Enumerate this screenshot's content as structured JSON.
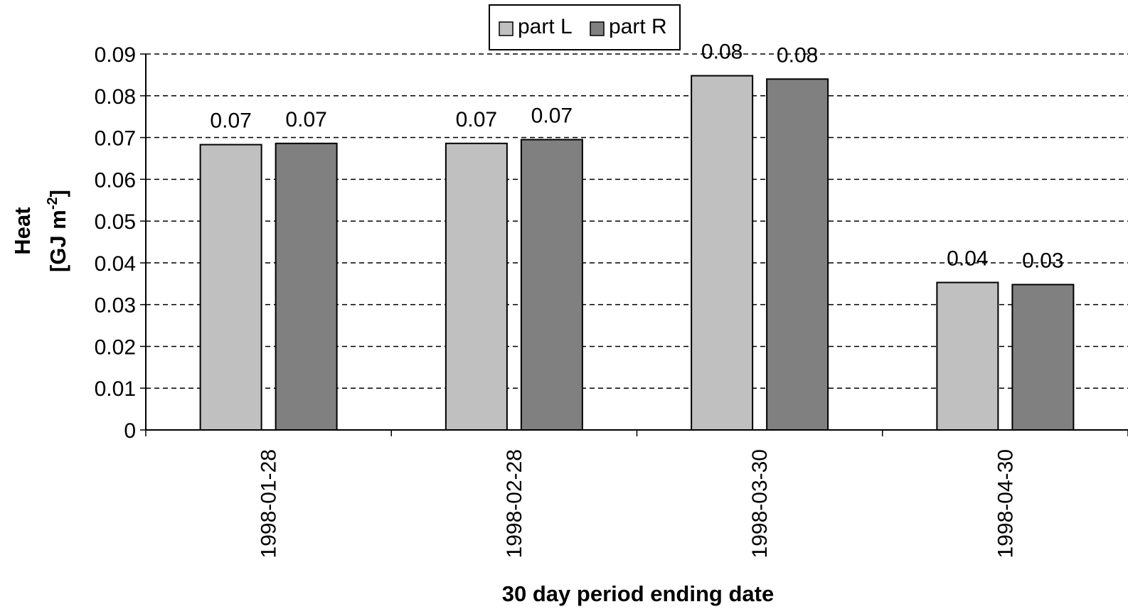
{
  "chart_data": {
    "type": "bar",
    "categories": [
      "1998-01-28",
      "1998-02-28",
      "1998-03-30",
      "1998-04-30"
    ],
    "series": [
      {
        "name": "part L",
        "color": "#c0c0c0",
        "values": [
          0.0683,
          0.0686,
          0.0848,
          0.0353
        ],
        "labels": [
          "0.07",
          "0.07",
          "0.08",
          "0.04"
        ]
      },
      {
        "name": "part R",
        "color": "#808080",
        "values": [
          0.0686,
          0.0695,
          0.084,
          0.0348
        ],
        "labels": [
          "0.07",
          "0.07",
          "0.08",
          "0.03"
        ]
      }
    ],
    "xlabel": "30 day period ending date",
    "ylabel_line1": "Heat",
    "ylabel_line2_main": "[GJ m",
    "ylabel_line2_sup": "-2",
    "ylabel_line2_end": "]",
    "ylim": [
      0,
      0.09
    ],
    "yticks": [
      "0",
      "0.01",
      "0.02",
      "0.03",
      "0.04",
      "0.05",
      "0.06",
      "0.07",
      "0.08",
      "0.09"
    ],
    "grid": "dashed horizontal",
    "legend_position": "top-center"
  }
}
